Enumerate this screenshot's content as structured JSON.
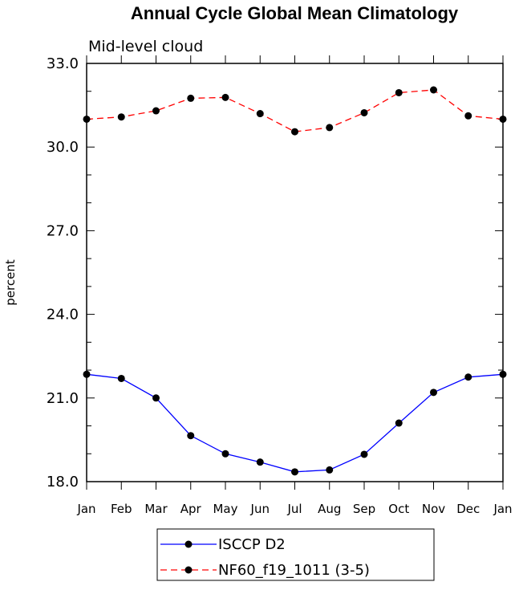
{
  "chart_data": {
    "type": "line",
    "title": "Annual Cycle Global Mean Climatology",
    "subtitle": "Mid-level cloud",
    "xlabel": "",
    "ylabel": "percent",
    "categories": [
      "Jan",
      "Feb",
      "Mar",
      "Apr",
      "May",
      "Jun",
      "Jul",
      "Aug",
      "Sep",
      "Oct",
      "Nov",
      "Dec",
      "Jan"
    ],
    "ylim": [
      18.0,
      33.0
    ],
    "yticks": [
      "18.0",
      "21.0",
      "24.0",
      "27.0",
      "30.0",
      "33.0"
    ],
    "legend_position": "bottom-center",
    "series": [
      {
        "name": "ISCCP D2",
        "color": "#0000ff",
        "dash": "solid",
        "values": [
          21.85,
          21.7,
          21.0,
          19.65,
          19.0,
          18.7,
          18.35,
          18.42,
          18.98,
          20.1,
          21.2,
          21.75,
          21.85
        ]
      },
      {
        "name": "NF60_f19_1011 (3-5)",
        "color": "#ff0000",
        "dash": "dashed",
        "values": [
          31.0,
          31.08,
          31.3,
          31.75,
          31.78,
          31.2,
          30.55,
          30.7,
          31.23,
          31.95,
          32.05,
          31.12,
          31.0
        ]
      }
    ]
  }
}
